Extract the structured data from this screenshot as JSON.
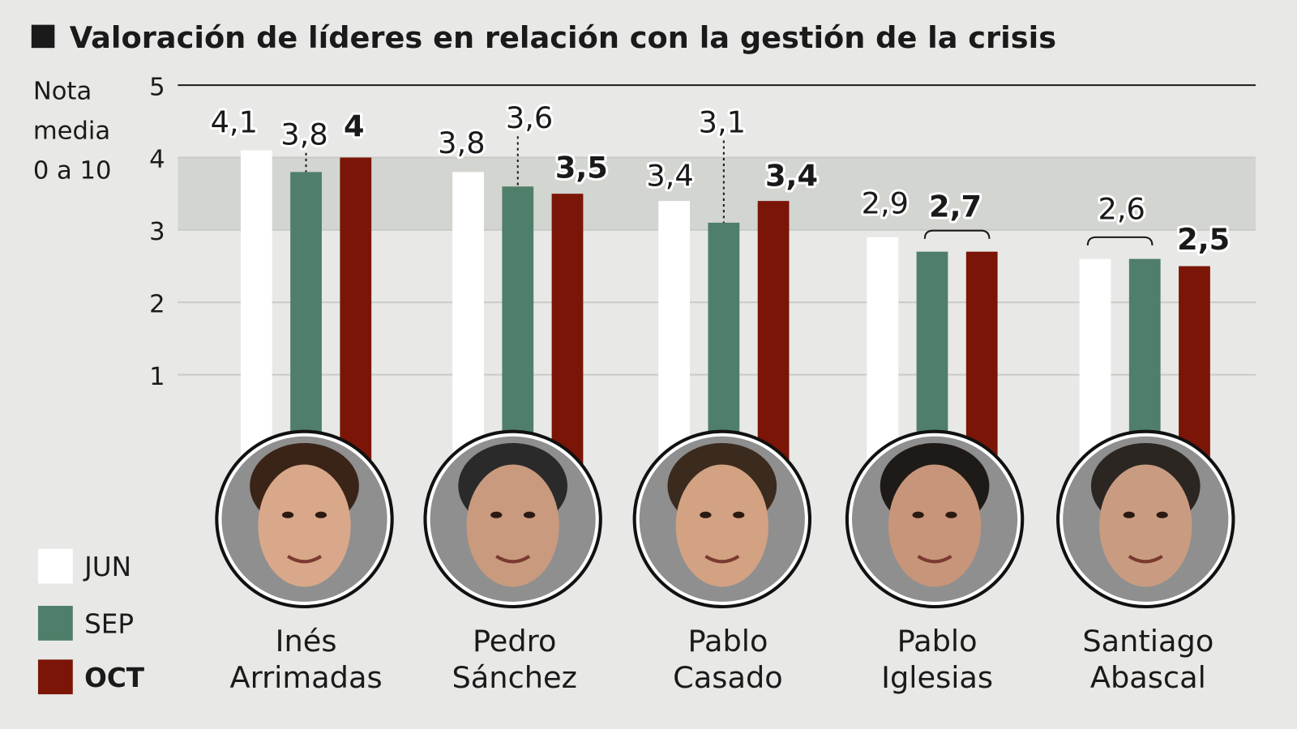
{
  "chart_data": {
    "type": "bar",
    "title": "Valoración de líderes en relación con la gestión de la crisis",
    "ylabel": "Nota media 0 a 10",
    "ylabel_lines": [
      "Nota",
      "media",
      "0 a 10"
    ],
    "ylim": [
      0,
      5
    ],
    "yticks": [
      "1",
      "2",
      "3",
      "4",
      "5"
    ],
    "shaded_band": [
      3,
      4
    ],
    "categories": [
      "Inés Arrimadas",
      "Pedro Sánchez",
      "Pablo Casado",
      "Pablo Iglesias",
      "Santiago Abascal"
    ],
    "category_lines": [
      [
        "Inés",
        "Arrimadas"
      ],
      [
        "Pedro",
        "Sánchez"
      ],
      [
        "Pablo",
        "Casado"
      ],
      [
        "Pablo",
        "Iglesias"
      ],
      [
        "Santiago",
        "Abascal"
      ]
    ],
    "series": [
      {
        "name": "JUN",
        "color": "#ffffff",
        "values": [
          4.1,
          3.8,
          3.4,
          2.9,
          2.6
        ],
        "labels": [
          "4,1",
          "3,8",
          "3,4",
          "2,9",
          "2,6"
        ]
      },
      {
        "name": "SEP",
        "color": "#4f7f6a",
        "values": [
          3.8,
          3.6,
          3.1,
          2.7,
          2.6
        ],
        "labels": [
          "3,8",
          "3,6",
          "3,1",
          "2,7",
          "2,6"
        ]
      },
      {
        "name": "OCT",
        "color": "#7a1508",
        "values": [
          4,
          3.5,
          3.4,
          2.7,
          2.5
        ],
        "labels": [
          "4",
          "3,5",
          "3,4",
          "2,7",
          "2,5"
        ]
      }
    ],
    "legend_placement": "bottom-left",
    "grid": true
  },
  "colors": {
    "background": "#e8e9e6",
    "band": "#d3d5d0",
    "grid": "#c9cbc6"
  }
}
